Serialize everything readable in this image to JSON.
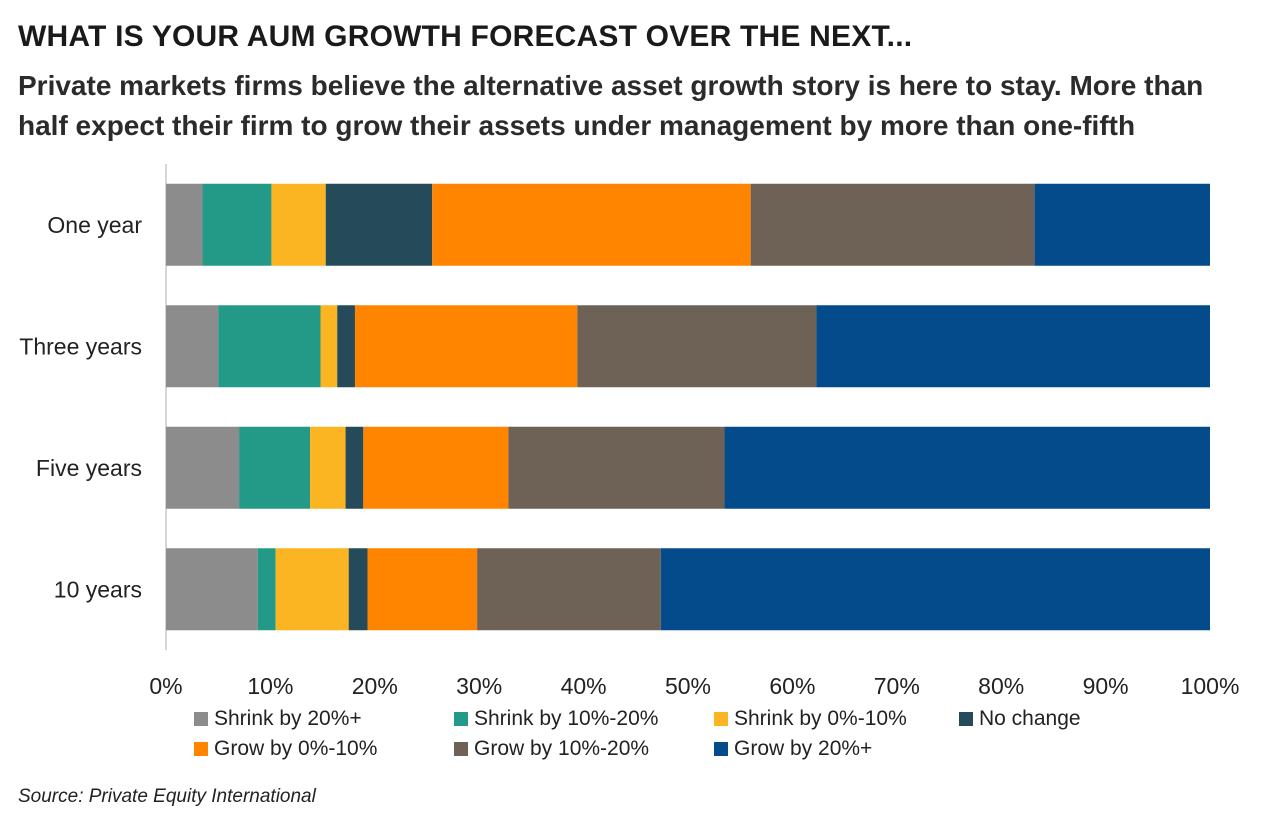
{
  "title": "WHAT IS YOUR AUM GROWTH FORECAST OVER THE NEXT...",
  "subtitle": "Private markets firms believe the alternative asset growth story is here to stay. More than half expect their firm to grow their assets under management by more than one-fifth",
  "source": "Source: Private Equity International",
  "chart_data": {
    "type": "bar",
    "orientation": "horizontal",
    "stacked": "100%",
    "categories": [
      "One year",
      "Three years",
      "Five years",
      "10 years"
    ],
    "series": [
      {
        "name": "Shrink by 20%+",
        "color": "#8c8c8c",
        "values": [
          3.5,
          5.0,
          7.0,
          8.8
        ]
      },
      {
        "name": "Shrink by 10%-20%",
        "color": "#239a88",
        "values": [
          6.6,
          9.8,
          6.8,
          1.7
        ]
      },
      {
        "name": "Shrink by 0%-10%",
        "color": "#fbb422",
        "values": [
          5.2,
          1.6,
          3.4,
          7.0
        ]
      },
      {
        "name": "No change",
        "color": "#254b5a",
        "values": [
          10.2,
          1.7,
          1.7,
          1.8
        ]
      },
      {
        "name": "Grow by 0%-10%",
        "color": "#ff8400",
        "values": [
          30.5,
          21.3,
          13.9,
          10.5
        ]
      },
      {
        "name": "Grow by 10%-20%",
        "color": "#6e6257",
        "values": [
          27.2,
          22.9,
          20.7,
          17.6
        ]
      },
      {
        "name": "Grow by 20%+",
        "color": "#034b8a",
        "values": [
          16.8,
          37.7,
          46.5,
          52.6
        ]
      }
    ],
    "x_ticks": [
      "0%",
      "10%",
      "20%",
      "30%",
      "40%",
      "50%",
      "60%",
      "70%",
      "80%",
      "90%",
      "100%"
    ],
    "xlim": [
      0,
      100
    ],
    "grid": false,
    "legend_position": "bottom"
  }
}
